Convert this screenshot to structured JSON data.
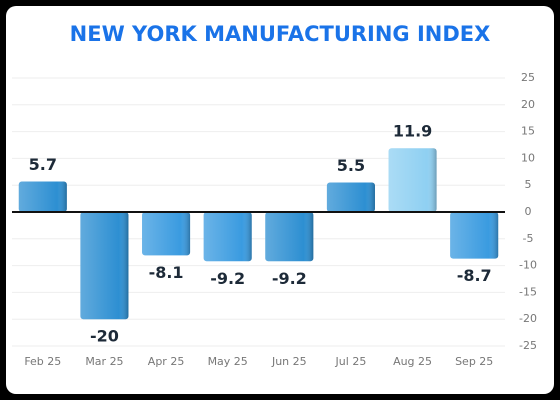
{
  "chart_data": {
    "type": "bar",
    "title": "NEW YORK MANUFACTURING INDEX",
    "categories": [
      "Feb 25",
      "Mar 25",
      "Apr 25",
      "May 25",
      "Jun 25",
      "Jul 25",
      "Aug 25",
      "Sep 25"
    ],
    "values": [
      5.7,
      -20,
      -8.1,
      -9.2,
      -9.2,
      5.5,
      11.9,
      -8.7
    ],
    "colors": [
      "#2d8fd2",
      "#2d8fd2",
      "#3a9be0",
      "#3a9be0",
      "#2d8fd2",
      "#2d8fd2",
      "#8fd0f2",
      "#3a9be0"
    ],
    "ylim": [
      -25,
      25
    ],
    "yticks": [
      -25,
      -20,
      -15,
      -10,
      -5,
      0,
      5,
      10,
      15,
      20,
      25
    ],
    "grid": true,
    "title_color": "#1a73e8"
  }
}
